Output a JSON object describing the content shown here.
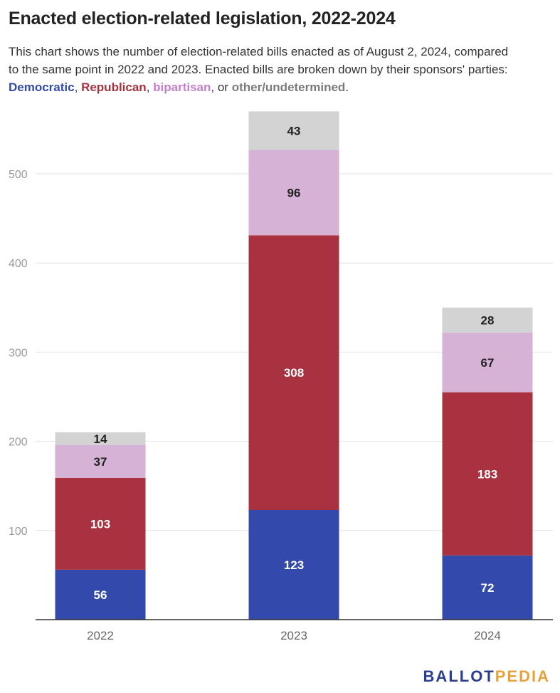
{
  "header": {
    "title": "Enacted election-related legislation, 2022-2024",
    "description_line1": "This chart shows the number of election-related bills enacted as of August 2, 2024, compared",
    "description_line2": "to the same point in 2022 and 2023. Enacted bills are broken down by their sponsors' parties:",
    "legend_sep1": ", ",
    "legend_sep2": ", ",
    "legend_sep3": ", or ",
    "legend_end": "."
  },
  "chart_data": {
    "type": "bar",
    "stacked": true,
    "title": "Enacted election-related legislation, 2022-2024",
    "categories": [
      "2022",
      "2023",
      "2024"
    ],
    "series": [
      {
        "name": "Democratic",
        "color": "#3349ab",
        "values": [
          56,
          123,
          72
        ]
      },
      {
        "name": "Republican",
        "color": "#a8323f",
        "values": [
          103,
          308,
          183
        ]
      },
      {
        "name": "bipartisan",
        "color": "#d5b2d6",
        "values": [
          37,
          96,
          67
        ]
      },
      {
        "name": "other/undetermined",
        "color": "#d3d3d3",
        "values": [
          14,
          43,
          28
        ]
      }
    ],
    "ylim": [
      0,
      580
    ],
    "yticks": [
      100,
      200,
      300,
      400,
      500
    ],
    "grid": true,
    "xlabel": "",
    "ylabel": ""
  },
  "branding": {
    "logo_part1": "BALLOT",
    "logo_part2": "PEDIA"
  }
}
